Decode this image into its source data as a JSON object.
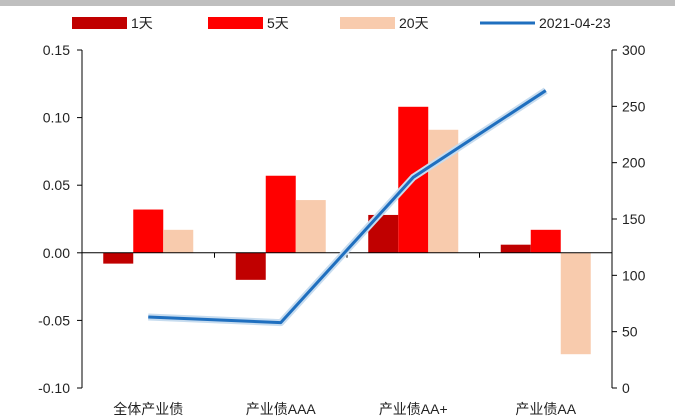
{
  "chart_data": {
    "type": "bar",
    "categories": [
      "全体产业债",
      "产业债AAA",
      "产业债AA+",
      "产业债AA"
    ],
    "series": [
      {
        "name": "1天",
        "type": "bar",
        "axis": "left",
        "color": "#c00000",
        "values": [
          -0.008,
          -0.02,
          0.028,
          0.006
        ]
      },
      {
        "name": "5天",
        "type": "bar",
        "axis": "left",
        "color": "#ff0000",
        "values": [
          0.032,
          0.057,
          0.108,
          0.017
        ]
      },
      {
        "name": "20天",
        "type": "bar",
        "axis": "left",
        "color": "#f8cbad",
        "values": [
          0.017,
          0.039,
          0.091,
          -0.075
        ]
      },
      {
        "name": "2021-04-23",
        "type": "line",
        "axis": "right",
        "color": "#1f6fbf",
        "values": [
          63,
          58,
          187,
          264
        ]
      }
    ],
    "y_left": {
      "range": [
        -0.1,
        0.15
      ],
      "ticks": [
        "0.15",
        "0.10",
        "0.05",
        "0.00",
        "-0.05",
        "-0.10"
      ]
    },
    "y_right": {
      "range": [
        0,
        300
      ],
      "ticks": [
        "300",
        "250",
        "200",
        "150",
        "100",
        "50",
        "0"
      ]
    },
    "grid": false,
    "legend": "top"
  }
}
